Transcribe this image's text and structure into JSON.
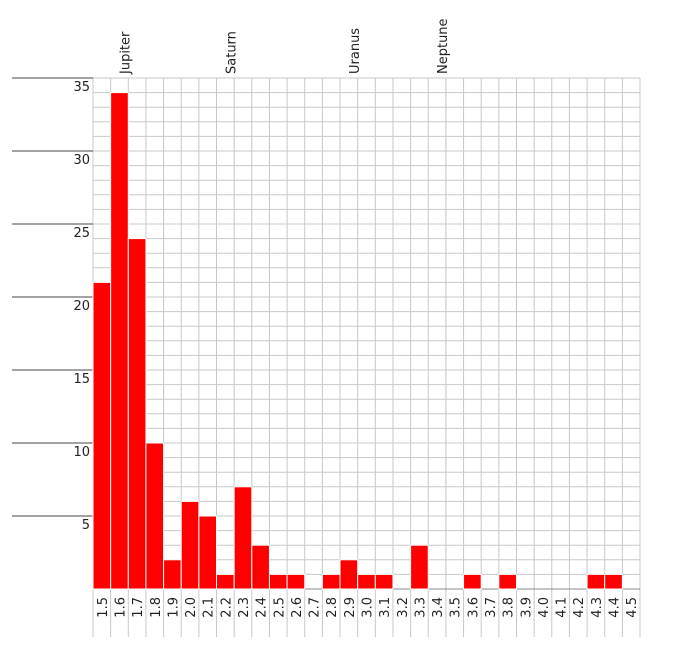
{
  "chart_data": {
    "type": "bar",
    "categories": [
      "1.5",
      "1.6",
      "1.7",
      "1.8",
      "1.9",
      "2.0",
      "2.1",
      "2.2",
      "2.3",
      "2.4",
      "2.5",
      "2.6",
      "2.7",
      "2.8",
      "2.9",
      "3.0",
      "3.1",
      "3.2",
      "3.3",
      "3.4",
      "3.5",
      "3.6",
      "3.7",
      "3.8",
      "3.9",
      "4.0",
      "4.1",
      "4.2",
      "4.3",
      "4.4",
      "4.5"
    ],
    "values": [
      21,
      34,
      24,
      10,
      2,
      6,
      5,
      1,
      7,
      3,
      1,
      1,
      0,
      1,
      2,
      1,
      1,
      0,
      3,
      0,
      0,
      1,
      0,
      1,
      0,
      0,
      0,
      0,
      1,
      1,
      0
    ],
    "color": "#ff0000",
    "ylim": [
      0,
      35
    ],
    "yticks": [
      5,
      10,
      15,
      20,
      25,
      30,
      35
    ],
    "grid": true,
    "annotations": [
      {
        "text": "Jupiter",
        "category": "1.6"
      },
      {
        "text": "Saturn",
        "category": "2.2"
      },
      {
        "text": "Uranus",
        "category": "2.9"
      },
      {
        "text": "Neptune",
        "category": "3.4"
      }
    ]
  }
}
